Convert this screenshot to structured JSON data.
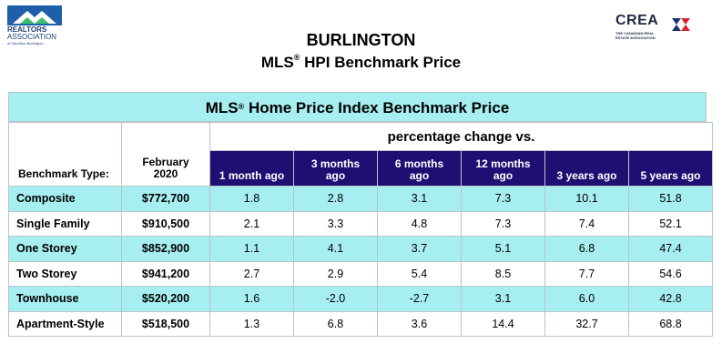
{
  "logo_left": {
    "line1": "REALTORS",
    "line2": "ASSOCIATION",
    "line3": "of Hamilton-Burlington"
  },
  "logo_right": {
    "word": "CREA",
    "sub1": "THE CANADIAN REAL",
    "sub2": "ESTATE ASSOCIATION"
  },
  "title": {
    "city": "BURLINGTON",
    "subtitle_pre": "MLS",
    "subtitle_reg": "®",
    "subtitle_post": " HPI Benchmark Price"
  },
  "banner": {
    "pre": "MLS",
    "reg": "®",
    "post": " Home Price Index Benchmark Price"
  },
  "table": {
    "pct_header": "percentage change vs.",
    "type_header": "Benchmark Type:",
    "month_header_line1": "February",
    "month_header_line2": "2020",
    "period_headers": [
      {
        "l1": "1 month ago",
        "l2": ""
      },
      {
        "l1": "3 months",
        "l2": "ago"
      },
      {
        "l1": "6 months",
        "l2": "ago"
      },
      {
        "l1": "12 months",
        "l2": "ago"
      },
      {
        "l1": "3 years ago",
        "l2": ""
      },
      {
        "l1": "5 years ago",
        "l2": ""
      }
    ],
    "rows": [
      {
        "type": "Composite",
        "price": "$772,700",
        "vals": [
          "1.8",
          "2.8",
          "3.1",
          "7.3",
          "10.1",
          "51.8"
        ]
      },
      {
        "type": "Single Family",
        "price": "$910,500",
        "vals": [
          "2.1",
          "3.3",
          "4.8",
          "7.3",
          "7.4",
          "52.1"
        ]
      },
      {
        "type": "One Storey",
        "price": "$852,900",
        "vals": [
          "1.1",
          "4.1",
          "3.7",
          "5.1",
          "6.8",
          "47.4"
        ]
      },
      {
        "type": "Two Storey",
        "price": "$941,200",
        "vals": [
          "2.7",
          "2.9",
          "5.4",
          "8.5",
          "7.7",
          "54.6"
        ]
      },
      {
        "type": "Townhouse",
        "price": "$520,200",
        "vals": [
          "1.6",
          "-2.0",
          "-2.7",
          "3.1",
          "6.0",
          "42.8"
        ]
      },
      {
        "type": "Apartment-Style",
        "price": "$518,500",
        "vals": [
          "1.3",
          "6.8",
          "3.6",
          "14.4",
          "32.7",
          "68.8"
        ]
      }
    ]
  },
  "colors": {
    "header_navy": "#1e0f73",
    "row_cyan": "#a6eef0",
    "grid": "#b9c4c8"
  }
}
